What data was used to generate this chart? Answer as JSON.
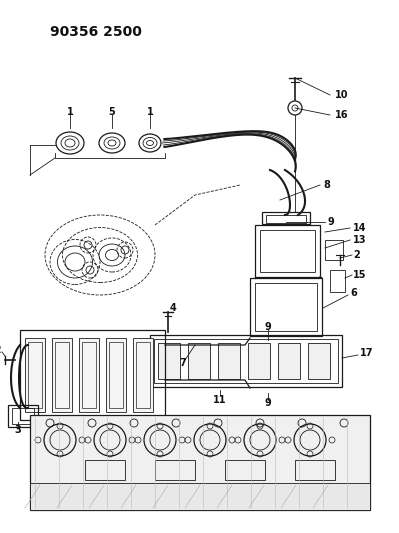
{
  "title": "90356 2500",
  "background_color": "#ffffff",
  "title_fontsize": 10,
  "title_fontweight": "bold",
  "fig_width": 3.99,
  "fig_height": 5.33,
  "dpi": 100,
  "line_color": "#1a1a1a",
  "label_fontsize": 7,
  "label_color": "#111111",
  "lw_main": 0.9,
  "lw_thin": 0.6,
  "lw_pipe": 1.5
}
